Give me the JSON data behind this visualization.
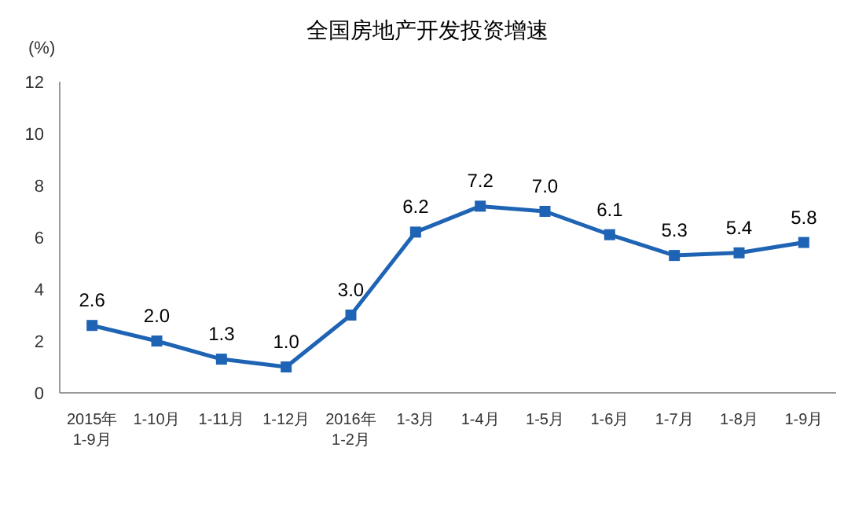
{
  "chart_data": {
    "type": "line",
    "title": "全国房地产开发投资增速",
    "ylabel": "(%)",
    "categories": [
      "2015年\n1-9月",
      "1-10月",
      "1-11月",
      "1-12月",
      "2016年\n1-2月",
      "1-3月",
      "1-4月",
      "1-5月",
      "1-6月",
      "1-7月",
      "1-8月",
      "1-9月"
    ],
    "series": [
      {
        "color": "#1f64b4",
        "values": [
          2.6,
          2.0,
          1.3,
          1.0,
          3.0,
          6.2,
          7.2,
          7.0,
          6.1,
          5.3,
          5.4,
          5.8
        ],
        "value_labels": [
          "2.6",
          "2.0",
          "1.3",
          "1.0",
          "3.0",
          "6.2",
          "7.2",
          "7.0",
          "6.1",
          "5.3",
          "5.4",
          "5.8"
        ]
      }
    ],
    "ylim": [
      0,
      12
    ],
    "yticks": [
      0,
      2,
      4,
      6,
      8,
      10,
      12
    ],
    "marker": "square"
  }
}
